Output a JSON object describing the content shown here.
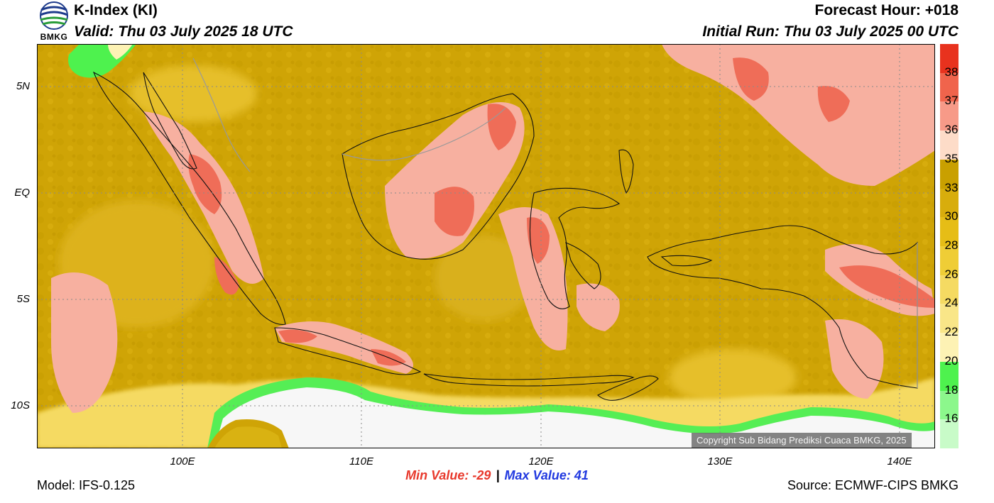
{
  "header": {
    "title": "K-Index (KI)",
    "valid": "Valid: Thu 03 July 2025 18 UTC",
    "forecast_hour": "Forecast Hour: +018",
    "initial_run": "Initial Run: Thu 03 July 2025 00 UTC",
    "logo_text": "BMKG"
  },
  "map": {
    "lat_labels": [
      "5N",
      "EQ",
      "5S",
      "10S"
    ],
    "lon_labels": [
      "100E",
      "110E",
      "120E",
      "130E",
      "140E"
    ],
    "copyright": "Copyright Sub Bidang Prediksi Cuaca BMKG, 2025"
  },
  "colorbar": {
    "labels": [
      "38",
      "37",
      "36",
      "35",
      "33",
      "30",
      "28",
      "26",
      "24",
      "22",
      "20",
      "18",
      "16"
    ],
    "colors": [
      "#e8321e",
      "#f0644c",
      "#f79a88",
      "#fddcc8",
      "#c9a000",
      "#d8ad0c",
      "#e6bd16",
      "#efcd36",
      "#f5da62",
      "#f9e688",
      "#fdf2b4",
      "#4ef24e",
      "#8cf78c",
      "#c8fbc8"
    ]
  },
  "stats": {
    "min": "Min Value: -29",
    "separator": "|",
    "max": "Max Value:  41"
  },
  "footer": {
    "model": "Model: IFS-0.125",
    "source": "Source: ECMWF-CIPS BMKG"
  }
}
